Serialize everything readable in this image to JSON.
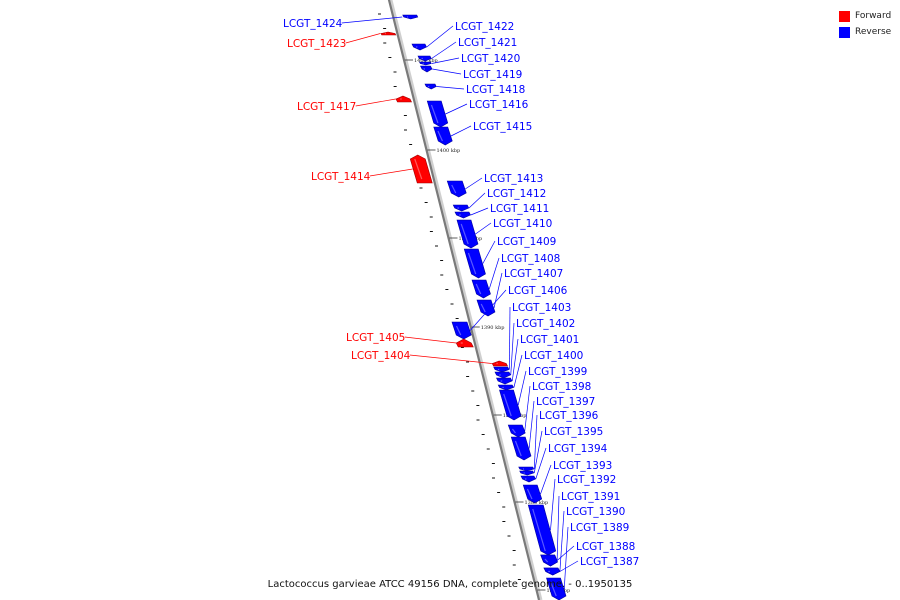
{
  "legend": {
    "items": [
      {
        "label": "Forward",
        "color": "#ff0000"
      },
      {
        "label": "Reverse",
        "color": "#0000ff"
      }
    ]
  },
  "caption": "Lactococcus garvieae ATCC 49156 DNA, complete genome. - 0..1950135",
  "scale_labels": [
    "1405 kbp",
    "1400 kbp",
    "1395 kbp",
    "1390 kbp",
    "1385 kbp",
    "1380 kbp",
    "1375 kbp"
  ],
  "genes": [
    {
      "label": "LCGT_1424",
      "strand": "reverse"
    },
    {
      "label": "LCGT_1423",
      "strand": "forward"
    },
    {
      "label": "LCGT_1422",
      "strand": "reverse"
    },
    {
      "label": "LCGT_1421",
      "strand": "reverse"
    },
    {
      "label": "LCGT_1420",
      "strand": "reverse"
    },
    {
      "label": "LCGT_1419",
      "strand": "reverse"
    },
    {
      "label": "LCGT_1418",
      "strand": "reverse"
    },
    {
      "label": "LCGT_1417",
      "strand": "forward"
    },
    {
      "label": "LCGT_1416",
      "strand": "reverse"
    },
    {
      "label": "LCGT_1415",
      "strand": "reverse"
    },
    {
      "label": "LCGT_1414",
      "strand": "forward"
    },
    {
      "label": "LCGT_1413",
      "strand": "reverse"
    },
    {
      "label": "LCGT_1412",
      "strand": "reverse"
    },
    {
      "label": "LCGT_1411",
      "strand": "reverse"
    },
    {
      "label": "LCGT_1410",
      "strand": "reverse"
    },
    {
      "label": "LCGT_1409",
      "strand": "reverse"
    },
    {
      "label": "LCGT_1408",
      "strand": "reverse"
    },
    {
      "label": "LCGT_1407",
      "strand": "reverse"
    },
    {
      "label": "LCGT_1406",
      "strand": "reverse"
    },
    {
      "label": "LCGT_1405",
      "strand": "forward"
    },
    {
      "label": "LCGT_1404",
      "strand": "forward"
    },
    {
      "label": "LCGT_1403",
      "strand": "reverse"
    },
    {
      "label": "LCGT_1402",
      "strand": "reverse"
    },
    {
      "label": "LCGT_1401",
      "strand": "reverse"
    },
    {
      "label": "LCGT_1400",
      "strand": "reverse"
    },
    {
      "label": "LCGT_1399",
      "strand": "reverse"
    },
    {
      "label": "LCGT_1398",
      "strand": "reverse"
    },
    {
      "label": "LCGT_1397",
      "strand": "reverse"
    },
    {
      "label": "LCGT_1396",
      "strand": "reverse"
    },
    {
      "label": "LCGT_1395",
      "strand": "reverse"
    },
    {
      "label": "LCGT_1394",
      "strand": "reverse"
    },
    {
      "label": "LCGT_1393",
      "strand": "reverse"
    },
    {
      "label": "LCGT_1392",
      "strand": "reverse"
    },
    {
      "label": "LCGT_1391",
      "strand": "reverse"
    },
    {
      "label": "LCGT_1390",
      "strand": "reverse"
    },
    {
      "label": "LCGT_1389",
      "strand": "reverse"
    },
    {
      "label": "LCGT_1388",
      "strand": "reverse"
    },
    {
      "label": "LCGT_1387",
      "strand": "reverse"
    }
  ]
}
